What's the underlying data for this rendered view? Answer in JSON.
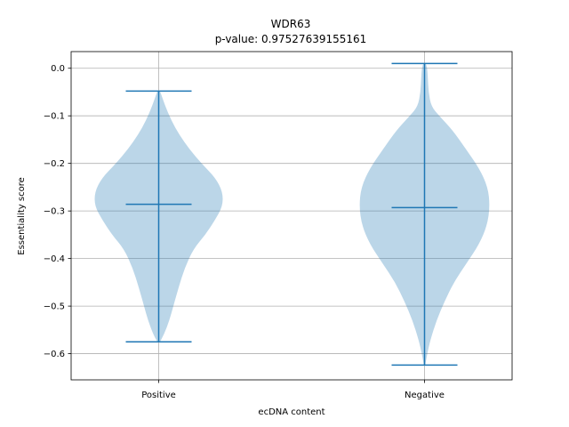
{
  "chart_data": {
    "type": "violin",
    "title": "WDR63",
    "subtitle": "p-value: 0.97527639155161",
    "xlabel": "ecDNA content",
    "ylabel": "Essentiality score",
    "categories": [
      "Positive",
      "Negative"
    ],
    "ylim": [
      -0.655,
      0.035
    ],
    "yticks": [
      0.0,
      -0.1,
      -0.2,
      -0.3,
      -0.4,
      -0.5,
      -0.6
    ],
    "ytick_labels": [
      "0.0",
      "−0.1",
      "−0.2",
      "−0.3",
      "−0.4",
      "−0.5",
      "−0.6"
    ],
    "grid": true,
    "colors": {
      "fill": "#1f77b4",
      "line": "#1f77b4",
      "grid": "#b0b0b0"
    },
    "violins": [
      {
        "category": "Positive",
        "min": -0.575,
        "max": -0.048,
        "median": -0.286,
        "profile": [
          [
            -0.575,
            0.02
          ],
          [
            -0.56,
            0.08
          ],
          [
            -0.53,
            0.16
          ],
          [
            -0.5,
            0.22
          ],
          [
            -0.46,
            0.3
          ],
          [
            -0.42,
            0.39
          ],
          [
            -0.38,
            0.52
          ],
          [
            -0.35,
            0.7
          ],
          [
            -0.32,
            0.84
          ],
          [
            -0.29,
            0.96
          ],
          [
            -0.26,
            0.96
          ],
          [
            -0.23,
            0.85
          ],
          [
            -0.2,
            0.64
          ],
          [
            -0.17,
            0.46
          ],
          [
            -0.14,
            0.31
          ],
          [
            -0.11,
            0.19
          ],
          [
            -0.08,
            0.1
          ],
          [
            -0.06,
            0.05
          ],
          [
            -0.048,
            0.02
          ]
        ]
      },
      {
        "category": "Negative",
        "min": -0.624,
        "max": 0.01,
        "median": -0.293,
        "profile": [
          [
            -0.624,
            0.01
          ],
          [
            -0.6,
            0.04
          ],
          [
            -0.57,
            0.09
          ],
          [
            -0.53,
            0.18
          ],
          [
            -0.49,
            0.3
          ],
          [
            -0.45,
            0.44
          ],
          [
            -0.41,
            0.63
          ],
          [
            -0.37,
            0.82
          ],
          [
            -0.33,
            0.94
          ],
          [
            -0.29,
            0.98
          ],
          [
            -0.25,
            0.95
          ],
          [
            -0.21,
            0.82
          ],
          [
            -0.17,
            0.62
          ],
          [
            -0.13,
            0.42
          ],
          [
            -0.1,
            0.22
          ],
          [
            -0.08,
            0.1
          ],
          [
            -0.05,
            0.06
          ],
          [
            -0.02,
            0.05
          ],
          [
            0.0,
            0.04
          ],
          [
            0.01,
            0.02
          ]
        ]
      }
    ]
  }
}
